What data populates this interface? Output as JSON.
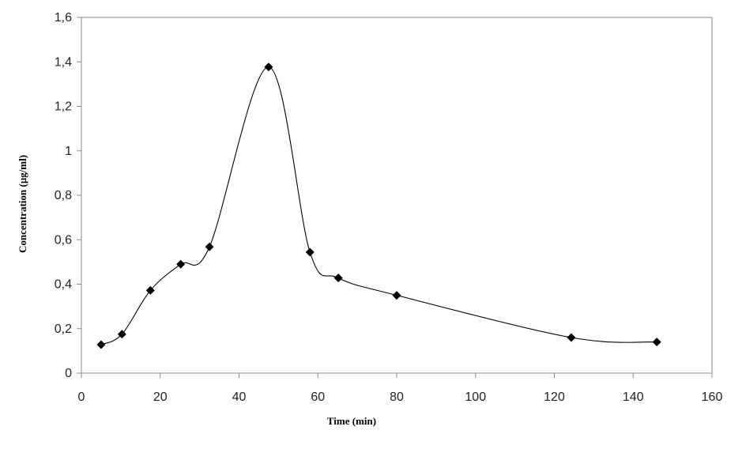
{
  "chart_data": {
    "type": "line",
    "title": "",
    "xlabel": "Time (min)",
    "ylabel": "Concentration (µg/ml)",
    "xlim": [
      0,
      160
    ],
    "ylim": [
      0,
      1.6
    ],
    "x_ticks": [
      0,
      20,
      40,
      60,
      80,
      100,
      120,
      140,
      160
    ],
    "y_ticks": [
      0,
      0.2,
      0.4,
      0.6,
      0.8,
      1,
      1.2,
      1.4,
      1.6
    ],
    "x_tick_labels": [
      "0",
      "20",
      "40",
      "60",
      "80",
      "100",
      "120",
      "140",
      "160"
    ],
    "y_tick_labels": [
      "0",
      "0,2",
      "0,4",
      "0,6",
      "0,8",
      "1",
      "1,2",
      "1,4",
      "1,6"
    ],
    "grid": false,
    "legend": "none",
    "smooth": true,
    "marker": "diamond",
    "series": [
      {
        "color": "#000000",
        "x": [
          5,
          10.3,
          17.5,
          25.2,
          32.5,
          47.5,
          58,
          65.2,
          80,
          124.3,
          146
        ],
        "y": [
          0.128,
          0.175,
          0.372,
          0.49,
          0.568,
          1.377,
          0.544,
          0.428,
          0.35,
          0.16,
          0.14
        ]
      }
    ]
  }
}
